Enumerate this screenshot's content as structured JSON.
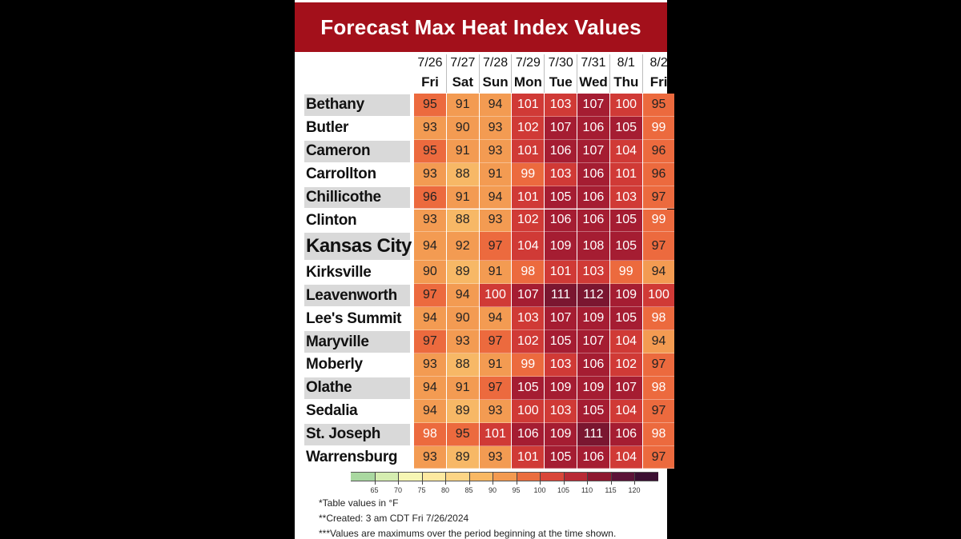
{
  "chart_data": {
    "type": "table",
    "title": "Forecast Max Heat Index Values",
    "columns": [
      {
        "date": "7/26",
        "day": "Fri"
      },
      {
        "date": "7/27",
        "day": "Sat"
      },
      {
        "date": "7/28",
        "day": "Sun"
      },
      {
        "date": "7/29",
        "day": "Mon"
      },
      {
        "date": "7/30",
        "day": "Tue"
      },
      {
        "date": "7/31",
        "day": "Wed"
      },
      {
        "date": "8/1",
        "day": "Thu"
      },
      {
        "date": "8/2",
        "day": "Fri"
      }
    ],
    "rows": [
      {
        "city": "Bethany",
        "values": [
          95,
          91,
          94,
          101,
          103,
          107,
          100,
          95
        ]
      },
      {
        "city": "Butler",
        "values": [
          93,
          90,
          93,
          102,
          107,
          106,
          105,
          99
        ]
      },
      {
        "city": "Cameron",
        "values": [
          95,
          91,
          93,
          101,
          106,
          107,
          104,
          96
        ]
      },
      {
        "city": "Carrollton",
        "values": [
          93,
          88,
          91,
          99,
          103,
          106,
          101,
          96
        ]
      },
      {
        "city": "Chillicothe",
        "values": [
          96,
          91,
          94,
          101,
          105,
          106,
          103,
          97
        ]
      },
      {
        "city": "Clinton",
        "values": [
          93,
          88,
          93,
          102,
          106,
          106,
          105,
          99
        ]
      },
      {
        "city": "Kansas City",
        "values": [
          94,
          92,
          97,
          104,
          109,
          108,
          105,
          97
        ]
      },
      {
        "city": "Kirksville",
        "values": [
          90,
          89,
          91,
          98,
          101,
          103,
          99,
          94
        ]
      },
      {
        "city": "Leavenworth",
        "values": [
          97,
          94,
          100,
          107,
          111,
          112,
          109,
          100
        ]
      },
      {
        "city": "Lee's Summit",
        "values": [
          94,
          90,
          94,
          103,
          107,
          109,
          105,
          98
        ]
      },
      {
        "city": "Maryville",
        "values": [
          97,
          93,
          97,
          102,
          105,
          107,
          104,
          94
        ]
      },
      {
        "city": "Moberly",
        "values": [
          93,
          88,
          91,
          99,
          103,
          106,
          102,
          97
        ]
      },
      {
        "city": "Olathe",
        "values": [
          94,
          91,
          97,
          105,
          109,
          109,
          107,
          98
        ]
      },
      {
        "city": "Sedalia",
        "values": [
          94,
          89,
          93,
          100,
          103,
          105,
          104,
          97
        ]
      },
      {
        "city": "St. Joseph",
        "values": [
          98,
          95,
          101,
          106,
          109,
          111,
          106,
          98
        ]
      },
      {
        "city": "Warrensburg",
        "values": [
          93,
          89,
          93,
          101,
          105,
          106,
          104,
          97
        ]
      }
    ],
    "legend": {
      "ticks": [
        65,
        70,
        75,
        80,
        85,
        90,
        95,
        100,
        105,
        110,
        115,
        120
      ],
      "colors": [
        "#a9d8a0",
        "#d5edb0",
        "#f6f6b4",
        "#fde9a0",
        "#fcd586",
        "#f9b863",
        "#f39a50",
        "#ea6e3f",
        "#d9473a",
        "#b82a35",
        "#8e1830",
        "#5c1438",
        "#3b0f32"
      ]
    },
    "notes": [
      "*Table values in °F",
      "**Created: 3 am CDT Fri 7/26/2024",
      "***Values are maximums over the period beginning at the time shown."
    ]
  }
}
